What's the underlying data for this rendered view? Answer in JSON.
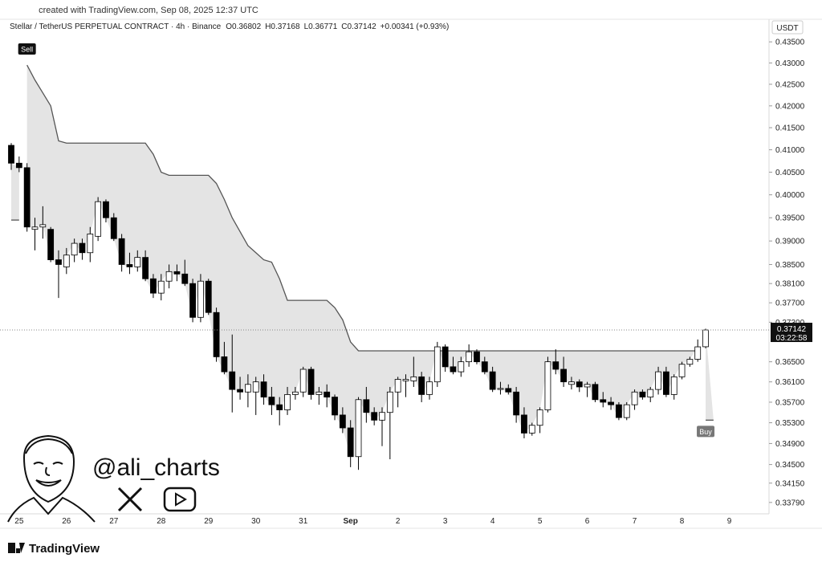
{
  "top_note": "created with TradingView.com, Sep 08, 2025 12:37 UTC",
  "header": {
    "symbol": "Stellar / TetherUS PERPETUAL CONTRACT · 4h · Binance",
    "ohlc": [
      "O0.36802",
      "H0.37168",
      "L0.36771",
      "C0.37142"
    ],
    "change": "+0.00341 (+0.93%)"
  },
  "currency": "USDT",
  "watermark": "@ali_charts",
  "footer": "TradingView",
  "chart_data": {
    "type": "candlestick",
    "log_scale": true,
    "grid": false,
    "up_color": "#ffffff",
    "down_color": "#000000",
    "wick_color": "#000000",
    "trend_color": "#555555",
    "fill_color": "#e4e4e4",
    "categories": [
      null,
      "25",
      null,
      null,
      null,
      null,
      null,
      "26",
      null,
      null,
      null,
      null,
      null,
      "27",
      null,
      null,
      null,
      null,
      null,
      "28",
      null,
      null,
      null,
      null,
      null,
      "29",
      null,
      null,
      null,
      null,
      null,
      "30",
      null,
      null,
      null,
      null,
      null,
      "31",
      null,
      null,
      null,
      null,
      null,
      "Sep",
      null,
      null,
      null,
      null,
      null,
      "2",
      null,
      null,
      null,
      null,
      null,
      "3",
      null,
      null,
      null,
      null,
      null,
      "4",
      null,
      null,
      null,
      null,
      null,
      "5",
      null,
      null,
      null,
      null,
      null,
      "6",
      null,
      null,
      null,
      null,
      null,
      "7",
      null,
      null,
      null,
      null,
      null,
      "8",
      null,
      null,
      null,
      null,
      null,
      "9"
    ],
    "open": [
      0.411,
      0.407,
      0.406,
      0.3925,
      0.393,
      0.3925,
      0.386,
      0.3845,
      0.387,
      0.3895,
      0.3875,
      0.391,
      0.3985,
      0.395,
      0.3905,
      0.385,
      0.3845,
      0.3865,
      0.382,
      0.379,
      0.3815,
      0.3835,
      0.383,
      0.381,
      0.374,
      0.3815,
      0.375,
      0.366,
      0.363,
      0.3595,
      0.359,
      0.359,
      0.361,
      0.358,
      0.3565,
      0.3555,
      0.3585,
      0.359,
      0.3635,
      0.3585,
      0.359,
      0.358,
      0.3545,
      0.352,
      0.3465,
      0.3575,
      0.355,
      0.3535,
      0.355,
      0.359,
      0.3612,
      0.3612,
      0.362,
      0.3585,
      0.361,
      0.368,
      0.364,
      0.363,
      0.365,
      0.367,
      0.365,
      0.363,
      0.3595,
      0.3597,
      0.359,
      0.3545,
      0.351,
      0.3525,
      0.3555,
      0.365,
      0.3635,
      0.3605,
      0.361,
      0.36,
      0.3605,
      0.3575,
      0.357,
      0.3565,
      0.354,
      0.3565,
      0.359,
      0.358,
      0.3595,
      0.363,
      0.3585,
      0.362,
      0.3645,
      0.3655,
      0.36802,
      null,
      null,
      null
    ],
    "high": [
      0.4115,
      0.4085,
      0.407,
      0.395,
      0.3975,
      0.393,
      0.388,
      0.3885,
      0.3905,
      0.3905,
      0.393,
      0.3995,
      0.399,
      0.396,
      0.3915,
      0.3875,
      0.388,
      0.388,
      0.383,
      0.383,
      0.385,
      0.385,
      0.386,
      0.382,
      0.383,
      0.382,
      0.376,
      0.369,
      0.3705,
      0.362,
      0.3625,
      0.362,
      0.3625,
      0.36,
      0.358,
      0.36,
      0.36,
      0.364,
      0.364,
      0.36,
      0.3605,
      0.3585,
      0.356,
      0.3535,
      0.358,
      0.36,
      0.356,
      0.356,
      0.36,
      0.362,
      0.3625,
      0.366,
      0.363,
      0.362,
      0.369,
      0.3685,
      0.366,
      0.366,
      0.3685,
      0.3675,
      0.366,
      0.364,
      0.361,
      0.3605,
      0.36,
      0.356,
      0.353,
      0.356,
      0.366,
      0.3675,
      0.366,
      0.362,
      0.3615,
      0.361,
      0.361,
      0.359,
      0.358,
      0.357,
      0.357,
      0.3595,
      0.3595,
      0.36,
      0.364,
      0.364,
      0.3625,
      0.365,
      0.366,
      0.3695,
      0.37168,
      null,
      null,
      null
    ],
    "low": [
      0.4055,
      0.405,
      0.392,
      0.388,
      0.3905,
      0.3855,
      0.378,
      0.383,
      0.3855,
      0.386,
      0.3855,
      0.39,
      0.394,
      0.39,
      0.3835,
      0.383,
      0.3835,
      0.3815,
      0.378,
      0.3775,
      0.38,
      0.3815,
      0.3805,
      0.373,
      0.373,
      0.3745,
      0.365,
      0.3625,
      0.355,
      0.3575,
      0.356,
      0.3545,
      0.3565,
      0.3545,
      0.3525,
      0.3545,
      0.3575,
      0.358,
      0.3575,
      0.3565,
      0.356,
      0.3535,
      0.351,
      0.3445,
      0.344,
      0.353,
      0.3525,
      0.3485,
      0.346,
      0.356,
      0.358,
      0.36,
      0.357,
      0.3575,
      0.36,
      0.363,
      0.3625,
      0.362,
      0.364,
      0.3645,
      0.3625,
      0.359,
      0.3585,
      0.3585,
      0.353,
      0.35,
      0.3505,
      0.351,
      0.355,
      0.3625,
      0.36,
      0.3595,
      0.359,
      0.358,
      0.357,
      0.356,
      0.3555,
      0.3535,
      0.3535,
      0.3555,
      0.3575,
      0.357,
      0.3585,
      0.358,
      0.3575,
      0.3615,
      0.364,
      0.365,
      0.36771,
      null,
      null,
      null
    ],
    "close": [
      0.407,
      0.406,
      0.393,
      0.393,
      0.3935,
      0.386,
      0.385,
      0.387,
      0.3895,
      0.3875,
      0.3915,
      0.3985,
      0.395,
      0.3905,
      0.385,
      0.3845,
      0.3865,
      0.382,
      0.379,
      0.3815,
      0.3835,
      0.383,
      0.381,
      0.374,
      0.3815,
      0.375,
      0.366,
      0.363,
      0.3595,
      0.359,
      0.3605,
      0.361,
      0.358,
      0.3565,
      0.3555,
      0.3585,
      0.359,
      0.3635,
      0.3585,
      0.359,
      0.358,
      0.3545,
      0.352,
      0.3465,
      0.3575,
      0.355,
      0.3535,
      0.355,
      0.359,
      0.3615,
      0.3615,
      0.362,
      0.3585,
      0.361,
      0.368,
      0.364,
      0.363,
      0.365,
      0.367,
      0.365,
      0.363,
      0.3595,
      0.3597,
      0.359,
      0.3545,
      0.351,
      0.3525,
      0.3555,
      0.365,
      0.3635,
      0.361,
      0.361,
      0.36,
      0.3605,
      0.3575,
      0.357,
      0.3565,
      0.354,
      0.3565,
      0.359,
      0.358,
      0.3595,
      0.363,
      0.3585,
      0.362,
      0.3645,
      0.3655,
      0.368,
      0.37142,
      null,
      null,
      null
    ],
    "supertrend_down": [
      null,
      null,
      0.4295,
      0.426,
      0.423,
      0.42,
      0.412,
      0.4115,
      0.4115,
      0.4115,
      0.4115,
      0.4115,
      0.4115,
      0.4115,
      0.4115,
      0.4115,
      0.4115,
      0.4115,
      0.409,
      0.405,
      0.4043,
      0.4043,
      0.4043,
      0.4043,
      0.4043,
      0.4043,
      0.4025,
      0.399,
      0.395,
      0.392,
      0.389,
      0.3875,
      0.386,
      0.3855,
      0.382,
      0.3775,
      0.3775,
      0.3775,
      0.3775,
      0.3775,
      0.3775,
      0.376,
      0.3735,
      0.369,
      0.3672,
      0.3672,
      0.3672,
      0.3672,
      0.3672,
      0.3672,
      0.3672,
      0.3672,
      0.3672,
      0.3672,
      0.3672,
      0.3672,
      0.3672,
      0.3672,
      0.3672,
      0.3672,
      0.3672,
      0.3672,
      0.3672,
      0.3672,
      0.3672,
      0.3672,
      0.3672,
      0.3672,
      0.3672,
      0.3672,
      0.3672,
      0.3672,
      0.3672,
      0.3672,
      0.3672,
      0.3672,
      0.3672,
      0.3672,
      0.3672,
      0.3672,
      0.3672,
      0.3672,
      0.3672,
      0.3672,
      0.3672,
      0.3672,
      0.3672,
      0.3672,
      null,
      null,
      null,
      null
    ],
    "supertrend_up": [
      0.3945,
      0.3945,
      null,
      null,
      null,
      null,
      null,
      null,
      null,
      null,
      null,
      null,
      null,
      null,
      null,
      null,
      null,
      null,
      null,
      null,
      null,
      null,
      null,
      null,
      null,
      null,
      null,
      null,
      null,
      null,
      null,
      null,
      null,
      null,
      null,
      null,
      null,
      null,
      null,
      null,
      null,
      null,
      null,
      null,
      null,
      null,
      null,
      null,
      null,
      null,
      null,
      null,
      null,
      null,
      null,
      null,
      null,
      null,
      null,
      null,
      null,
      null,
      null,
      null,
      null,
      null,
      null,
      null,
      null,
      null,
      null,
      null,
      null,
      null,
      null,
      null,
      null,
      null,
      null,
      null,
      null,
      null,
      null,
      null,
      null,
      null,
      null,
      null,
      0.3535,
      null,
      null,
      null
    ],
    "annotations": [
      {
        "text": "Sell",
        "index": 2
      },
      {
        "text": "Buy",
        "index": 88
      }
    ],
    "last_price": {
      "value": 0.37142,
      "label": "0.37142",
      "countdown": "03:22:58"
    },
    "ylim": [
      0.3358,
      0.4412
    ],
    "yticks": [
      {
        "value": 0.435,
        "label": "0.43500"
      },
      {
        "value": 0.43,
        "label": "0.43000"
      },
      {
        "value": 0.425,
        "label": "0.42500"
      },
      {
        "value": 0.42,
        "label": "0.42000"
      },
      {
        "value": 0.415,
        "label": "0.41500"
      },
      {
        "value": 0.41,
        "label": "0.41000"
      },
      {
        "value": 0.405,
        "label": "0.40500"
      },
      {
        "value": 0.4,
        "label": "0.40000"
      },
      {
        "value": 0.395,
        "label": "0.39500"
      },
      {
        "value": 0.39,
        "label": "0.39000"
      },
      {
        "value": 0.385,
        "label": "0.38500"
      },
      {
        "value": 0.381,
        "label": "0.38100"
      },
      {
        "value": 0.377,
        "label": "0.37700"
      },
      {
        "value": 0.373,
        "label": "0.37300"
      },
      {
        "value": 0.365,
        "label": "0.36500"
      },
      {
        "value": 0.361,
        "label": "0.36100"
      },
      {
        "value": 0.357,
        "label": "0.35700"
      },
      {
        "value": 0.353,
        "label": "0.35300"
      },
      {
        "value": 0.349,
        "label": "0.34900"
      },
      {
        "value": 0.345,
        "label": "0.34500"
      },
      {
        "value": 0.3415,
        "label": "0.34150"
      },
      {
        "value": 0.3379,
        "label": "0.33790"
      }
    ]
  }
}
